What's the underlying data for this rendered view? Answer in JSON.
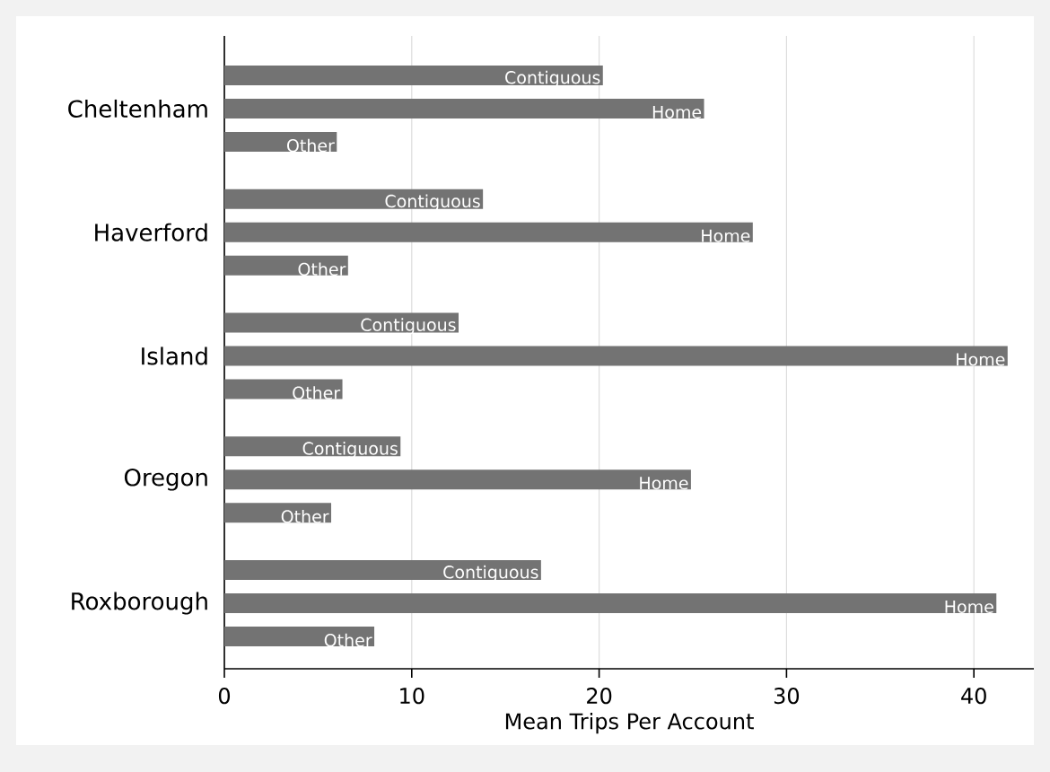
{
  "chart_data": {
    "type": "bar",
    "orientation": "horizontal",
    "xlabel": "Mean Trips Per Account",
    "categories": [
      "Cheltenham",
      "Haverford",
      "Island",
      "Oregon",
      "Roxborough"
    ],
    "series": [
      {
        "name": "Contiguous",
        "color": "#737373",
        "values": [
          20.2,
          13.8,
          12.5,
          9.4,
          16.9
        ]
      },
      {
        "name": "Home",
        "color": "#737373",
        "values": [
          25.6,
          28.2,
          41.8,
          24.9,
          41.2
        ]
      },
      {
        "name": "Other",
        "color": "#737373",
        "values": [
          6.0,
          6.6,
          6.3,
          5.7,
          8.0
        ]
      }
    ],
    "xlim": [
      0,
      43.2
    ],
    "xticks": [
      0,
      10,
      20,
      30,
      40
    ],
    "grid": "x"
  }
}
